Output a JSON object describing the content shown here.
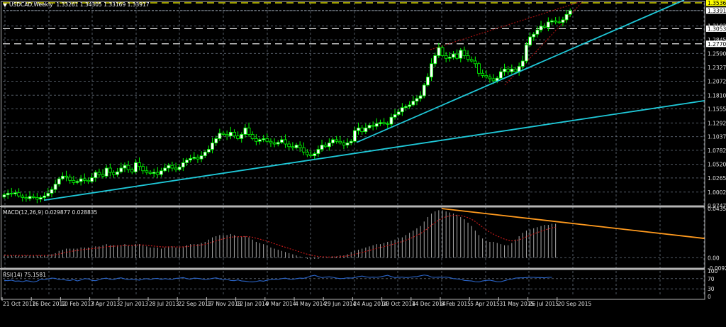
{
  "header": {
    "symbol": "USDCAD,Weekly",
    "ohlc": "1.33261 1.34305 1.33169 1.33917"
  },
  "macd_title": "MACD(12,26,9) 0.029877 0.028835",
  "rsi_title": "RSI(14) 75.1581",
  "colors": {
    "background": "#000000",
    "grid": "#6e7886",
    "bull_body": "#ffffff",
    "bull_wick": "#00ff00",
    "bear_body": "#000000",
    "bear_outline": "#00ff00",
    "trendline": "#1fc8d8",
    "macd_hist": "#c8c8c8",
    "macd_signal": "#c01818",
    "macd_trend": "#ff9a1e",
    "rsi_line": "#2a64c8",
    "price_current": "#ffff00",
    "channel": "#a01010"
  },
  "price_axis": {
    "labels": [
      "1.35362",
      "1.33917",
      "1.31035",
      "1.30536",
      "1.28450",
      "1.27707",
      "1.25900",
      "1.23275",
      "1.20725",
      "1.18100",
      "1.15550",
      "1.12925",
      "1.10375",
      "1.07825",
      "1.05200",
      "1.02650",
      "1.00025",
      "0.97475"
    ],
    "highlighted": {
      "current": "1.35362",
      "last": "1.33917",
      "level1": "1.30536",
      "level2": "1.27707"
    }
  },
  "macd_axis": {
    "labels": [
      "0.0435",
      "0.00",
      "-0.00925"
    ]
  },
  "rsi_axis": {
    "labels": [
      "100",
      "70",
      "30",
      "0"
    ]
  },
  "time_axis": {
    "labels": [
      "21 Oct 2012",
      "16 Dec 2012",
      "10 Feb 2013",
      "7 Apr 2013",
      "2 Jun 2013",
      "28 Jul 2013",
      "22 Sep 2013",
      "17 Nov 2013",
      "12 Jan 2014",
      "9 Mar 2014",
      "4 May 2014",
      "29 Jun 2014",
      "24 Aug 2014",
      "19 Oct 2014",
      "14 Dec 2014",
      "8 Feb 2015",
      "5 Apr 2015",
      "31 May 2015",
      "26 Jul 2015",
      "20 Sep 2015"
    ]
  },
  "chart_data": [
    {
      "type": "candlestick",
      "title": "USDCAD,Weekly",
      "subtitle": "1.33261 1.34305 1.33169 1.33917",
      "xlabel": "",
      "ylabel": "",
      "ylim": [
        0.97475,
        1.35362
      ],
      "x_ticks": [
        "21 Oct 2012",
        "16 Dec 2012",
        "10 Feb 2013",
        "7 Apr 2013",
        "2 Jun 2013",
        "28 Jul 2013",
        "22 Sep 2013",
        "17 Nov 2013",
        "12 Jan 2014",
        "9 Mar 2014",
        "4 May 2014",
        "29 Jun 2014",
        "24 Aug 2014",
        "19 Oct 2014",
        "14 Dec 2014",
        "8 Feb 2015",
        "5 Apr 2015",
        "31 May 2015",
        "26 Jul 2015",
        "20 Sep 2015"
      ],
      "y_ticks": [
        1.35362,
        1.33917,
        1.31035,
        1.30536,
        1.2845,
        1.27707,
        1.259,
        1.23275,
        1.20725,
        1.181,
        1.1555,
        1.12925,
        1.10375,
        1.07825,
        1.052,
        1.0265,
        1.00025,
        0.97475
      ],
      "close_approx": [
        0.995,
        0.998,
        0.997,
        0.999,
        0.993,
        0.99,
        0.988,
        0.992,
        0.99,
        0.987,
        0.99,
        0.993,
        0.998,
        1.005,
        1.015,
        1.025,
        1.03,
        1.028,
        1.022,
        1.018,
        1.02,
        1.025,
        1.022,
        1.02,
        1.027,
        1.037,
        1.033,
        1.03,
        1.045,
        1.037,
        1.033,
        1.038,
        1.045,
        1.05,
        1.042,
        1.038,
        1.055,
        1.048,
        1.04,
        1.037,
        1.035,
        1.037,
        1.033,
        1.04,
        1.045,
        1.05,
        1.045,
        1.042,
        1.047,
        1.055,
        1.06,
        1.063,
        1.065,
        1.062,
        1.068,
        1.075,
        1.08,
        1.092,
        1.1,
        1.11,
        1.108,
        1.105,
        1.112,
        1.105,
        1.1,
        1.108,
        1.12,
        1.108,
        1.1,
        1.095,
        1.098,
        1.1,
        1.095,
        1.092,
        1.09,
        1.093,
        1.098,
        1.09,
        1.085,
        1.083,
        1.088,
        1.083,
        1.075,
        1.07,
        1.068,
        1.072,
        1.08,
        1.088,
        1.085,
        1.092,
        1.098,
        1.095,
        1.092,
        1.088,
        1.092,
        1.095,
        1.115,
        1.12,
        1.113,
        1.12,
        1.125,
        1.123,
        1.128,
        1.13,
        1.128,
        1.127,
        1.14,
        1.145,
        1.15,
        1.158,
        1.16,
        1.163,
        1.17,
        1.175,
        1.18,
        1.2,
        1.215,
        1.24,
        1.255,
        1.27,
        1.255,
        1.25,
        1.252,
        1.258,
        1.25,
        1.265,
        1.255,
        1.248,
        1.245,
        1.24,
        1.222,
        1.218,
        1.215,
        1.212,
        1.208,
        1.213,
        1.225,
        1.23,
        1.225,
        1.23,
        1.225,
        1.235,
        1.245,
        1.275,
        1.29,
        1.295,
        1.303,
        1.31,
        1.308,
        1.318,
        1.32,
        1.318,
        1.317,
        1.322,
        1.332,
        1.339
      ],
      "trendlines": [
        {
          "name": "long-term support",
          "from": {
            "x": "21 Oct 2012",
            "y": 0.985
          },
          "to": {
            "x": "right-edge",
            "y": 1.171
          }
        },
        {
          "name": "steep support",
          "from": {
            "x": "24 Aug 2014",
            "y": 1.093
          },
          "to": {
            "x": "right-edge",
            "y": 1.36
          }
        }
      ],
      "horizontal_levels": [
        1.35362,
        1.30536,
        1.27707
      ]
    },
    {
      "type": "bar",
      "title": "MACD(12,26,9) 0.029877 0.028835",
      "ylim": [
        -0.00925,
        0.0435
      ],
      "series": [
        {
          "name": "MACD histogram",
          "values_approx": [
            0.002,
            0.002,
            0.002,
            0.002,
            0.002,
            0.002,
            0.002,
            0.002,
            0.002,
            0.002,
            0.002,
            0.002,
            0.002,
            0.003,
            0.004,
            0.006,
            0.007,
            0.008,
            0.008,
            0.008,
            0.008,
            0.009,
            0.009,
            0.009,
            0.009,
            0.01,
            0.01,
            0.011,
            0.012,
            0.011,
            0.011,
            0.011,
            0.011,
            0.012,
            0.011,
            0.011,
            0.012,
            0.012,
            0.011,
            0.01,
            0.009,
            0.009,
            0.009,
            0.008,
            0.009,
            0.01,
            0.01,
            0.009,
            0.009,
            0.01,
            0.011,
            0.012,
            0.012,
            0.012,
            0.013,
            0.014,
            0.016,
            0.018,
            0.019,
            0.02,
            0.02,
            0.02,
            0.021,
            0.02,
            0.019,
            0.019,
            0.019,
            0.018,
            0.016,
            0.014,
            0.013,
            0.012,
            0.011,
            0.009,
            0.008,
            0.007,
            0.006,
            0.005,
            0.004,
            0.003,
            0.002,
            0.001,
            0.0,
            -0.001,
            -0.001,
            -0.001,
            -0.001,
            0.0,
            0.0,
            0.0,
            0.001,
            0.001,
            0.002,
            0.002,
            0.003,
            0.005,
            0.006,
            0.007,
            0.008,
            0.009,
            0.01,
            0.011,
            0.012,
            0.012,
            0.013,
            0.014,
            0.015,
            0.016,
            0.017,
            0.018,
            0.02,
            0.022,
            0.024,
            0.026,
            0.028,
            0.032,
            0.036,
            0.039,
            0.041,
            0.042,
            0.042,
            0.041,
            0.04,
            0.039,
            0.038,
            0.036,
            0.034,
            0.031,
            0.028,
            0.024,
            0.02,
            0.017,
            0.015,
            0.014,
            0.014,
            0.013,
            0.012,
            0.011,
            0.011,
            0.013,
            0.016,
            0.019,
            0.022,
            0.024,
            0.025,
            0.026,
            0.027,
            0.028,
            0.029,
            0.029,
            0.03,
            0.03
          ]
        },
        {
          "name": "Signal",
          "type": "dotted-line"
        }
      ],
      "trendline": {
        "name": "MACD divergence",
        "from": {
          "x": "8 Feb 2015",
          "y": 0.0435
        },
        "to": {
          "x": "right-edge",
          "y": 0.017
        }
      }
    },
    {
      "type": "line",
      "title": "RSI(14) 75.1581",
      "ylim": [
        0,
        100
      ],
      "levels": [
        70,
        30
      ],
      "values_approx": [
        63,
        62,
        64,
        60,
        61,
        58,
        62,
        60,
        57,
        60,
        68,
        66,
        69,
        72,
        71,
        66,
        67,
        64,
        63,
        66,
        61,
        65,
        70,
        69,
        63,
        62,
        66,
        70,
        72,
        67,
        66,
        71,
        73,
        69,
        66,
        68,
        66,
        64,
        68,
        70,
        66,
        70,
        71,
        67,
        70,
        68,
        67,
        71,
        72,
        74,
        70,
        68,
        72,
        71,
        69,
        66,
        68,
        71,
        73,
        69,
        66,
        67,
        63,
        62,
        65,
        61,
        60,
        58,
        57,
        59,
        62,
        60,
        64,
        66,
        68,
        67,
        70,
        72,
        68,
        67,
        70,
        72,
        71,
        75,
        80,
        83,
        78,
        74,
        76,
        77,
        75,
        72,
        70,
        71,
        73,
        72,
        74,
        78,
        80,
        77,
        75,
        76,
        75,
        77,
        80,
        83,
        78,
        74,
        75,
        76,
        74,
        75,
        77,
        78,
        81,
        84,
        82,
        76,
        75,
        76,
        75,
        76,
        74,
        70,
        69,
        67,
        63,
        62,
        61,
        58,
        57,
        61,
        63,
        64,
        61,
        58,
        58,
        62,
        66,
        68,
        72,
        73,
        73,
        74,
        75,
        75,
        74,
        74,
        73,
        75,
        75
      ]
    }
  ]
}
